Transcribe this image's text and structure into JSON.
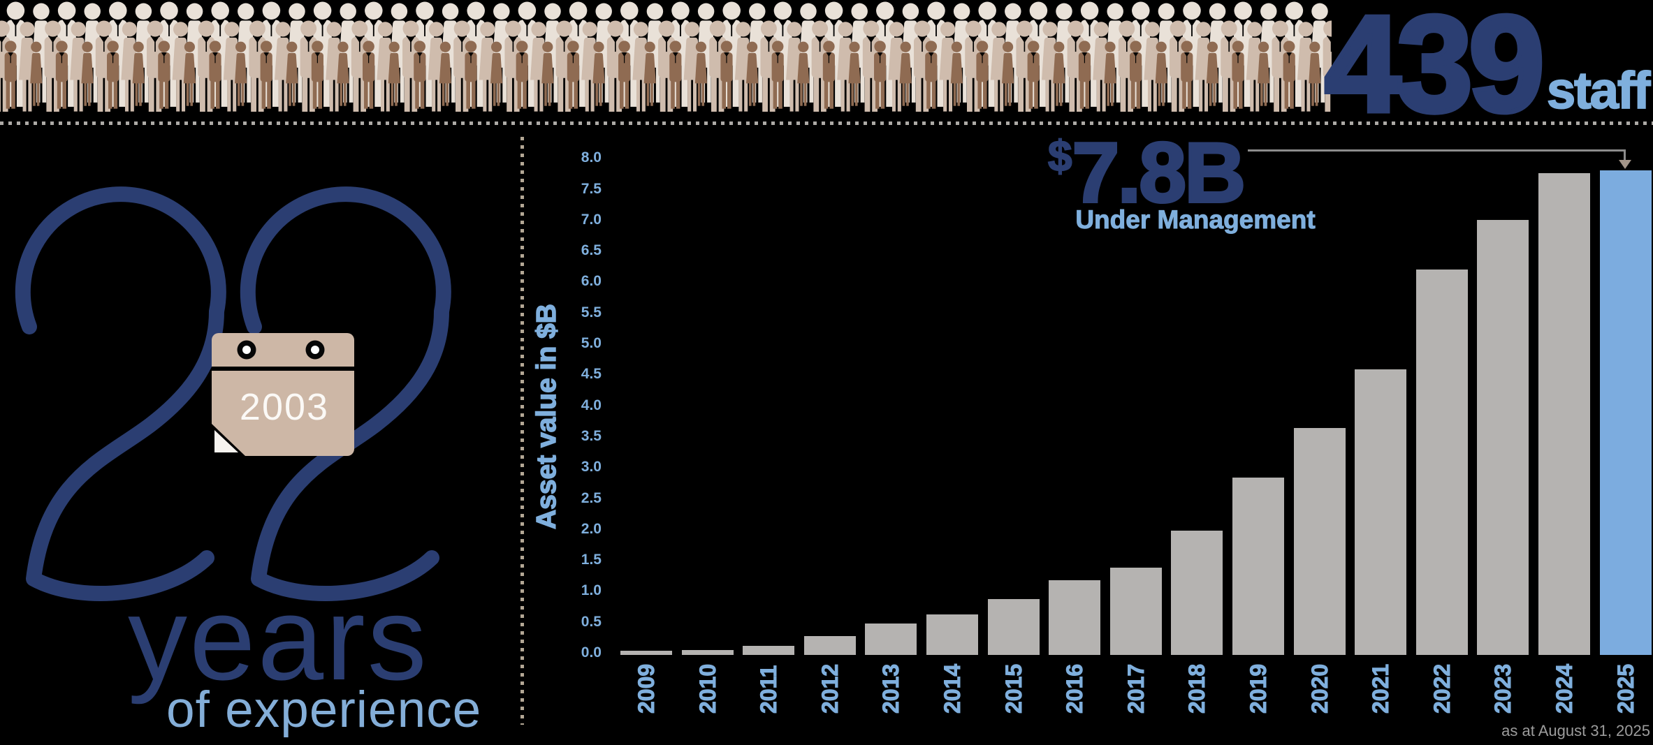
{
  "colors": {
    "navy": "#2b3e72",
    "lightblue": "#7fafdd",
    "bar_gray": "#b5b3b1",
    "bar_blue": "#7cacdf",
    "calendar_tan": "#cdb7a6",
    "divider_dot": "#adaaa6",
    "footnote_gray": "#9c9c9c",
    "annotation_line": "#8c8c8c"
  },
  "staff_banner": {
    "count": "439",
    "label": "staff",
    "crowd_rows": [
      {
        "name": "back-row",
        "color": "#e9e1d8",
        "y": 0,
        "scale": 1.02,
        "start_x": 2,
        "count": 54
      },
      {
        "name": "middle-row",
        "color": "#cfbcad",
        "y": 27,
        "scale": 0.92,
        "start_x": -16,
        "count": 55
      },
      {
        "name": "front-row",
        "color": "#8f6b52",
        "y": 56,
        "scale": 0.66,
        "start_x": 2,
        "count": 54
      }
    ]
  },
  "experience": {
    "big_number": "22",
    "founded_year": "2003",
    "line1": "years",
    "line2": "of experience"
  },
  "chart": {
    "headline": {
      "symbol": "$",
      "amount": "7.8B",
      "subtitle": "Under Management"
    }
  },
  "chart_data": {
    "type": "bar",
    "title": "$7.8B Under Management",
    "categories": [
      "2009",
      "2010",
      "2011",
      "2012",
      "2013",
      "2014",
      "2015",
      "2016",
      "2017",
      "2018",
      "2019",
      "2020",
      "2021",
      "2022",
      "2023",
      "2024",
      "2025"
    ],
    "values": [
      0.07,
      0.08,
      0.15,
      0.3,
      0.5,
      0.65,
      0.9,
      1.2,
      1.4,
      2.0,
      2.85,
      3.65,
      4.6,
      6.2,
      7.0,
      7.75,
      7.8
    ],
    "xlabel": "",
    "ylabel": "Asset value in $B",
    "ylim": [
      0,
      8
    ],
    "ytick_step": 0.5,
    "grid": false,
    "legend": false,
    "bar_color": "#b5b3b1",
    "highlight_category": "2025",
    "highlight_color": "#7cacdf",
    "annotation": {
      "value_label": "$7.8B",
      "sublabel": "Under Management",
      "points_to": "2025"
    },
    "footnote": "as at August 31, 2025"
  }
}
